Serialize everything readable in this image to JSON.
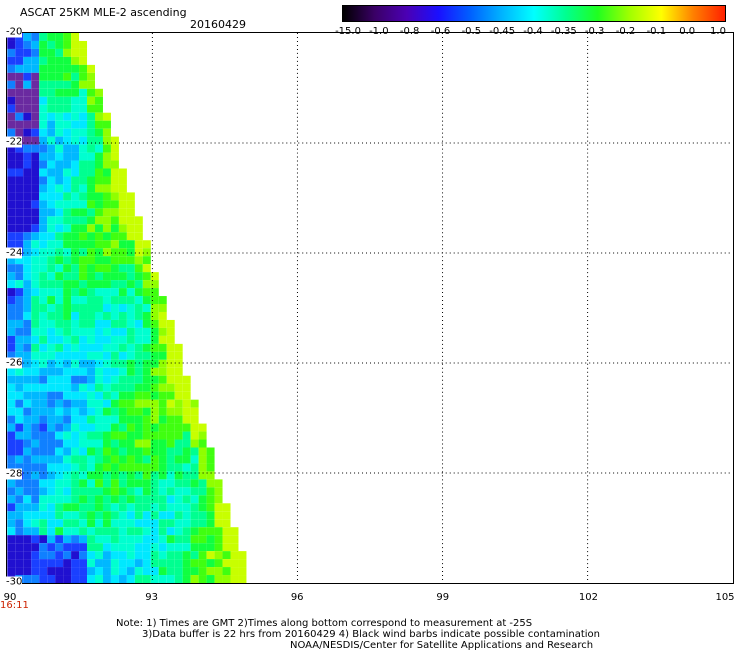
{
  "header": {
    "title": "ASCAT 25KM MLE-2 ascending",
    "date": "20160429"
  },
  "colorbar": {
    "labels": [
      "-15.0",
      "-1.0",
      "-0.8",
      "-0.6",
      "-0.5",
      "-0.45",
      "-0.4",
      "-0.35",
      "-0.3",
      "-0.2",
      "-0.1",
      "0.0",
      "1.0"
    ],
    "colors": [
      "#000000",
      "#3a0066",
      "#4b00b4",
      "#1a10ff",
      "#0060ff",
      "#00b4ff",
      "#00ffff",
      "#00ff90",
      "#20ff20",
      "#a0ff00",
      "#ffff00",
      "#ff8000",
      "#ff2000"
    ]
  },
  "map": {
    "x_ticks": [
      "90",
      "93",
      "96",
      "99",
      "102",
      "105"
    ],
    "y_ticks": [
      "-20",
      "-22",
      "-24",
      "-26",
      "-28",
      "-30"
    ],
    "time_label": "16:11"
  },
  "footer": {
    "note_line1": "Note: 1) Times are GMT 2)Times along bottom correspond to measurement at -25S",
    "note_line2": "3)Data buffer is 22 hrs from 20160429 4) Black wind barbs indicate possible contamination",
    "note_line3": "NOAA/NESDIS/Center for Satellite Applications and Research"
  }
}
